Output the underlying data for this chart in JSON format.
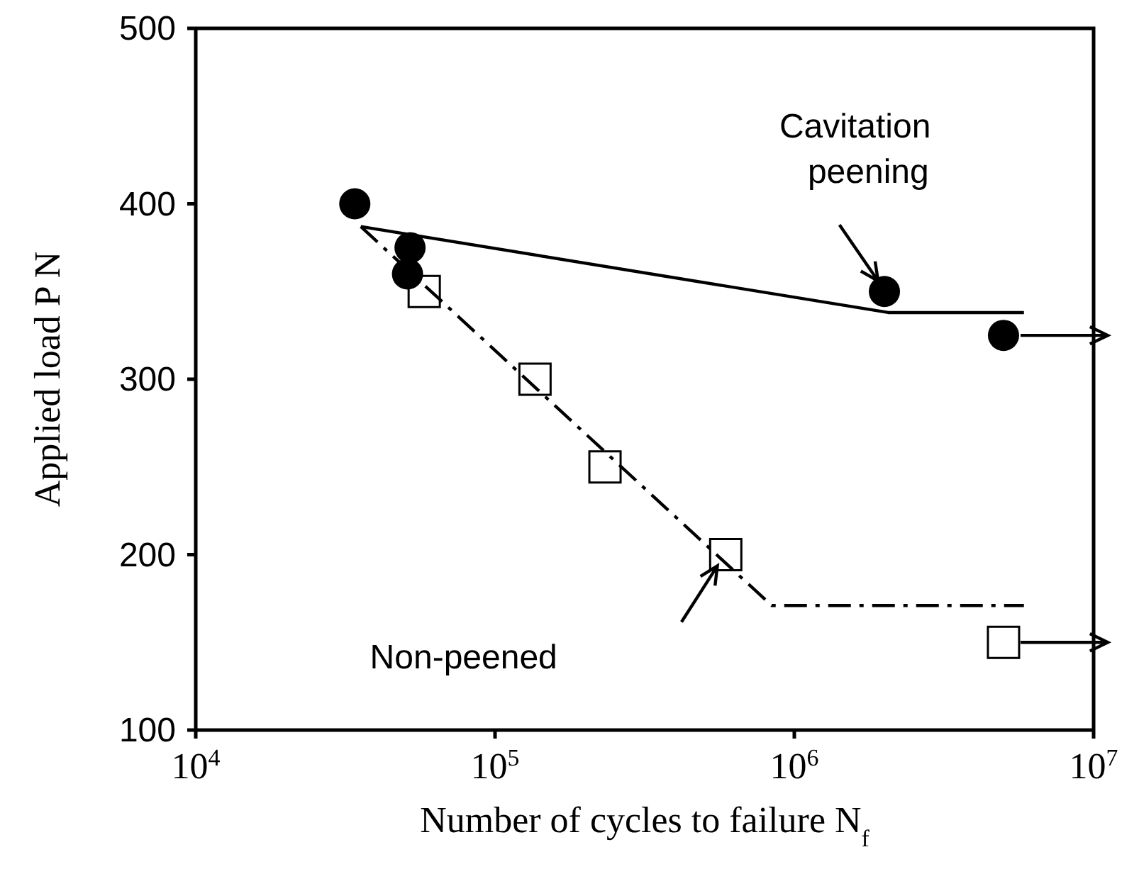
{
  "chart_data": {
    "type": "scatter",
    "xlabel": "Number of cycles to failure N$_{f}$",
    "ylabel": "Applied load P N",
    "log": "x",
    "xlim": [
      10000,
      10000000
    ],
    "xticks": [
      {
        "value": 10000,
        "label": "10$^{4}$"
      },
      {
        "value": 100000,
        "label": "10$^{5}$"
      },
      {
        "value": 1000000,
        "label": "10$^{6}$"
      },
      {
        "value": 10000000,
        "label": "10$^{7}$"
      }
    ],
    "ylim": [
      100,
      500
    ],
    "yticks": [
      100,
      200,
      300,
      400,
      500
    ],
    "annotations": [
      "Cavitation peening",
      "Non-peened"
    ],
    "series": [
      {
        "type": "line",
        "line_style": "solid",
        "marker": "none",
        "color": "#000000",
        "x": [
          35600,
          2060000,
          5850000
        ],
        "values": [
          387,
          338,
          338
        ]
      },
      {
        "type": "line",
        "line_style": "dashed",
        "marker": "none",
        "color": "#000000",
        "x": [
          35600,
          840000,
          5850000
        ],
        "values": [
          387,
          171,
          171
        ]
      },
      {
        "marker": "circle",
        "color": "#000000",
        "x": [
          34000,
          52000,
          51000,
          2000000,
          5000000
        ],
        "values": [
          400,
          375,
          360,
          350,
          325
        ]
      },
      {
        "marker": "square",
        "color": "#000000",
        "x": [
          58000,
          136000,
          233000,
          590000,
          5000000
        ],
        "values": [
          350,
          300,
          250,
          200,
          150
        ]
      }
    ]
  }
}
